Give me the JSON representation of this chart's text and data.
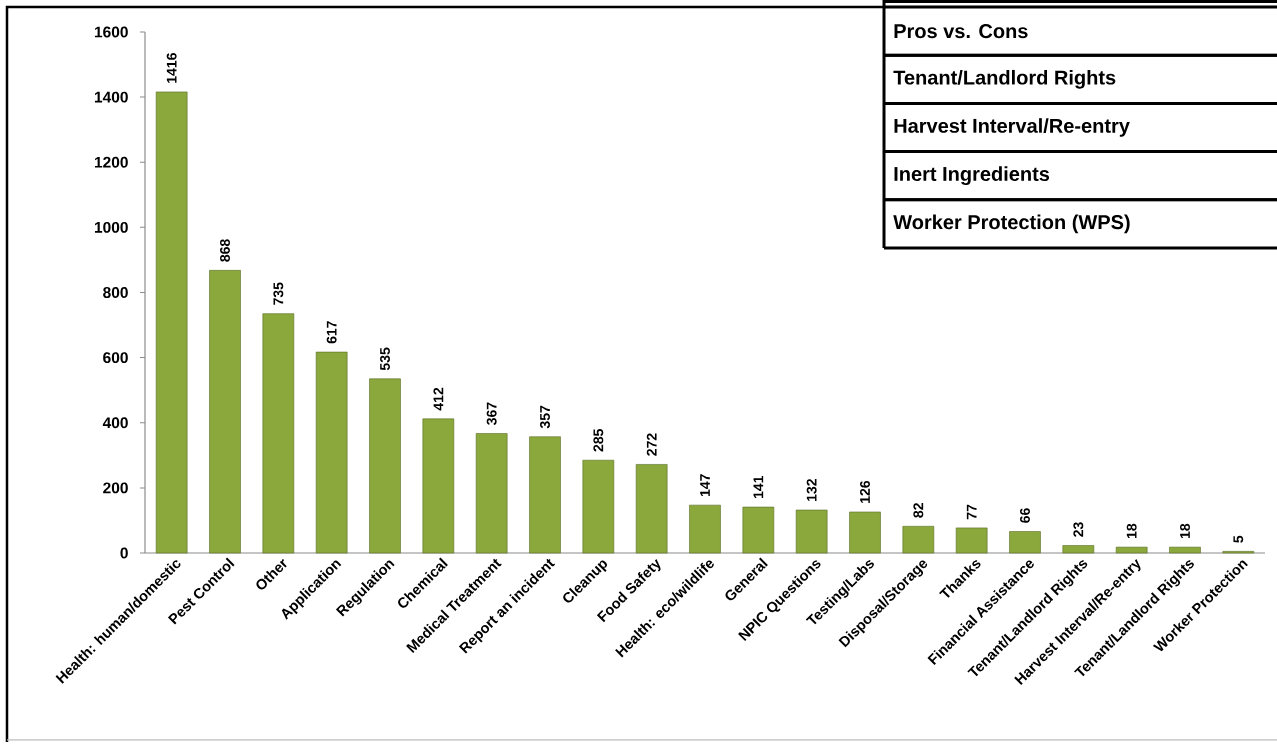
{
  "chart_data": {
    "type": "bar",
    "categories": [
      "Health: human/domestic",
      "Pest Control",
      "Other",
      "Application",
      "Regulation",
      "Chemical",
      "Medical Treatment",
      "Report an incident",
      "Cleanup",
      "Food Safety",
      "Health: eco/wildlife",
      "General",
      "NPIC Questions",
      "Testing/Labs",
      "Disposal/Storage",
      "Thanks",
      "Financial Assistance",
      "Tenant/Landlord Rights",
      "Harvest Interval/Re-entry",
      "Tenant/Landlord Rights",
      "Worker Protection"
    ],
    "values": [
      1416,
      868,
      735,
      617,
      535,
      412,
      367,
      357,
      285,
      272,
      147,
      141,
      132,
      126,
      82,
      77,
      66,
      23,
      18,
      18,
      5
    ],
    "color": "#8aa83c",
    "ylim": [
      0,
      1600
    ],
    "yticks": [
      0,
      200,
      400,
      600,
      800,
      1000,
      1200,
      1400,
      1600
    ],
    "data_labels": true,
    "annotations": [
      "Pros vs. Cons",
      "Tenant/Landlord Rights",
      "Harvest Interval/Re-entry",
      "Inert Ingredients",
      "Worker Protection (WPS)"
    ]
  }
}
